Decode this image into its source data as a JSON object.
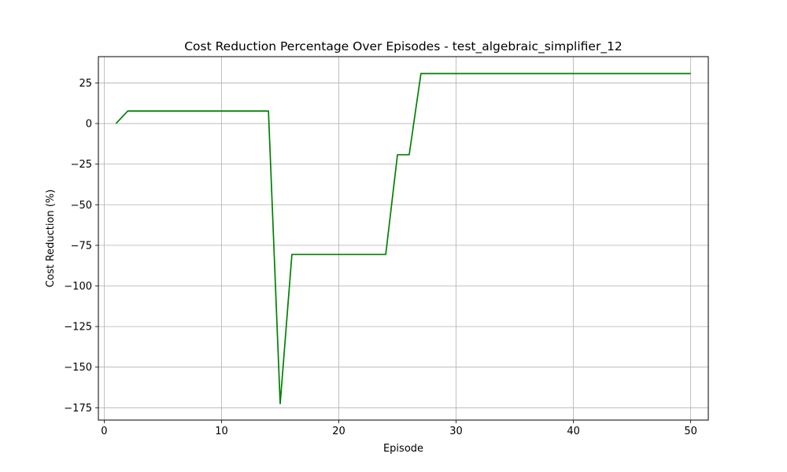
{
  "chart_data": {
    "type": "line",
    "title": "Cost Reduction Percentage Over Episodes - test_algebraic_simplifier_12",
    "xlabel": "Episode",
    "ylabel": "Cost Reduction (%)",
    "xlim": [
      -0.5,
      51.5
    ],
    "ylim": [
      -182.6,
      41.2
    ],
    "xticks": [
      0,
      10,
      20,
      30,
      40,
      50
    ],
    "yticks": [
      25,
      0,
      -25,
      -50,
      -75,
      -100,
      -125,
      -150,
      -175
    ],
    "xtick_labels": [
      "0",
      "10",
      "20",
      "30",
      "40",
      "50"
    ],
    "ytick_labels": [
      "25",
      "0",
      "−25",
      "−50",
      "−75",
      "−100",
      "−125",
      "−150",
      "−175"
    ],
    "grid": true,
    "series": [
      {
        "color": "#008000",
        "x": [
          1,
          2,
          3,
          4,
          5,
          6,
          7,
          8,
          9,
          10,
          11,
          12,
          13,
          14,
          15,
          16,
          17,
          18,
          19,
          20,
          21,
          22,
          23,
          24,
          25,
          26,
          27,
          28,
          29,
          30,
          31,
          32,
          33,
          34,
          35,
          36,
          37,
          38,
          39,
          40,
          41,
          42,
          43,
          44,
          45,
          46,
          47,
          48,
          49,
          50
        ],
        "values": [
          0,
          7.7,
          7.7,
          7.7,
          7.7,
          7.7,
          7.7,
          7.7,
          7.7,
          7.7,
          7.7,
          7.7,
          7.7,
          7.7,
          -172.5,
          -80.6,
          -80.6,
          -80.6,
          -80.6,
          -80.6,
          -80.6,
          -80.6,
          -80.6,
          -80.6,
          -19.2,
          -19.2,
          30.8,
          30.8,
          30.8,
          30.8,
          30.8,
          30.8,
          30.8,
          30.8,
          30.8,
          30.8,
          30.8,
          30.8,
          30.8,
          30.8,
          30.8,
          30.8,
          30.8,
          30.8,
          30.8,
          30.8,
          30.8,
          30.8,
          30.8,
          30.8
        ]
      }
    ]
  }
}
